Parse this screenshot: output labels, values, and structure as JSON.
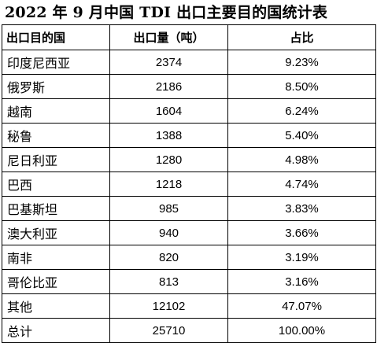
{
  "title": "2022 年 9 月中国 TDI 出口主要目的国统计表",
  "table": {
    "headers": [
      "出口目的国",
      "出口量（吨）",
      "占比"
    ],
    "rows": [
      {
        "country": "印度尼西亚",
        "volume": "2374",
        "share": "9.23%"
      },
      {
        "country": "俄罗斯",
        "volume": "2186",
        "share": "8.50%"
      },
      {
        "country": "越南",
        "volume": "1604",
        "share": "6.24%"
      },
      {
        "country": "秘鲁",
        "volume": "1388",
        "share": "5.40%"
      },
      {
        "country": "尼日利亚",
        "volume": "1280",
        "share": "4.98%"
      },
      {
        "country": "巴西",
        "volume": "1218",
        "share": "4.74%"
      },
      {
        "country": "巴基斯坦",
        "volume": "985",
        "share": "3.83%"
      },
      {
        "country": "澳大利亚",
        "volume": "940",
        "share": "3.66%"
      },
      {
        "country": "南非",
        "volume": "820",
        "share": "3.19%"
      },
      {
        "country": "哥伦比亚",
        "volume": "813",
        "share": "3.16%"
      },
      {
        "country": "其他",
        "volume": "12102",
        "share": "47.07%"
      },
      {
        "country": "总计",
        "volume": "25710",
        "share": "100.00%"
      }
    ]
  }
}
